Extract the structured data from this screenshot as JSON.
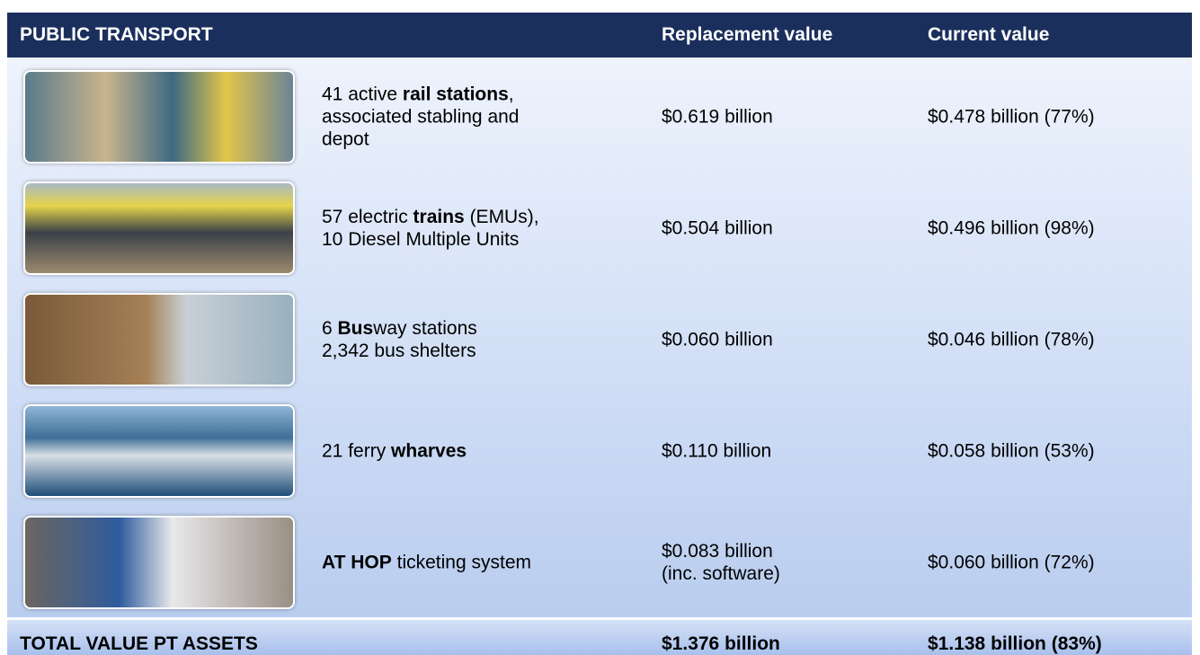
{
  "header": {
    "title": "PUBLIC TRANSPORT",
    "columns": [
      "Replacement value",
      "Current value"
    ]
  },
  "table": {
    "rows": [
      {
        "description": [
          {
            "text": "41 active "
          },
          {
            "text": "rail stations",
            "bold": true
          },
          {
            "text": ",\nassociated stabling and\ndepot"
          }
        ],
        "replacement_value": "$0.619 billion",
        "current_value": "$0.478 billion (77%)"
      },
      {
        "description": [
          {
            "text": "57 electric "
          },
          {
            "text": "trains",
            "bold": true
          },
          {
            "text": " (EMUs),\n10 Diesel Multiple Units"
          }
        ],
        "replacement_value": "$0.504 billion",
        "current_value": "$0.496 billion (98%)"
      },
      {
        "description": [
          {
            "text": "6 "
          },
          {
            "text": "Bus",
            "bold": true
          },
          {
            "text": "way stations\n2,342 bus shelters"
          }
        ],
        "replacement_value": "$0.060 billion",
        "current_value": "$0.046 billion (78%)"
      },
      {
        "description": [
          {
            "text": "21 ferry "
          },
          {
            "text": "wharves",
            "bold": true
          }
        ],
        "replacement_value": "$0.110 billion",
        "current_value": "$0.058 billion (53%)"
      },
      {
        "description": [
          {
            "text": "AT HOP",
            "bold": true
          },
          {
            "text": " ticketing system"
          }
        ],
        "replacement_value": "$0.083 billion\n(inc. software)",
        "current_value": "$0.060 billion (72%)"
      }
    ]
  },
  "total": {
    "label": "TOTAL VALUE PT ASSETS",
    "replacement_value": "$1.376 billion",
    "current_value": "$1.138 billion (83%)"
  }
}
